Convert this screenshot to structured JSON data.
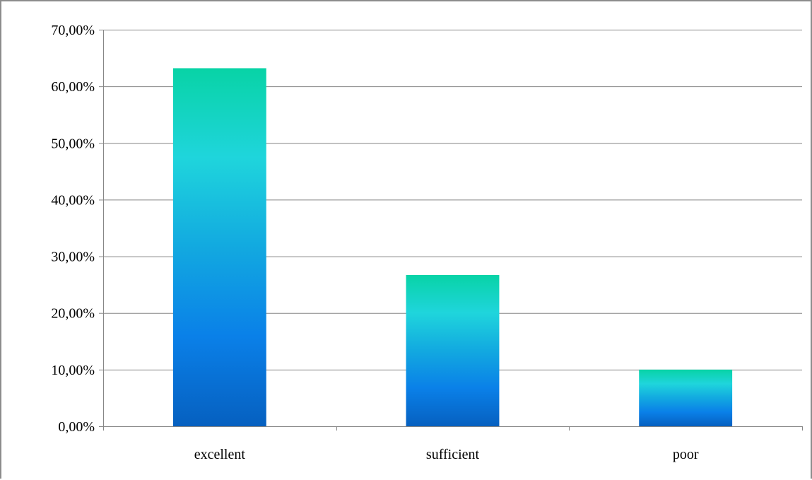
{
  "chart_data": {
    "type": "bar",
    "categories": [
      "excellent",
      "sufficient",
      "poor"
    ],
    "values": [
      63.2,
      26.7,
      10.0
    ],
    "ylim": [
      0,
      70
    ],
    "yticks": [
      0,
      10,
      20,
      30,
      40,
      50,
      60,
      70
    ],
    "ytick_labels": [
      "0,00%",
      "10,00%",
      "20,00%",
      "30,00%",
      "40,00%",
      "50,00%",
      "60,00%",
      "70,00%"
    ],
    "grid": true,
    "legend": "none",
    "bar_gradient": {
      "top": "#08d3a6",
      "upper": "#1fd5dc",
      "middle": "#12a9e0",
      "lower": "#0a80e8",
      "bottom": "#0660c0"
    },
    "gridline_color": "#868686",
    "axis_color": "#868686"
  }
}
